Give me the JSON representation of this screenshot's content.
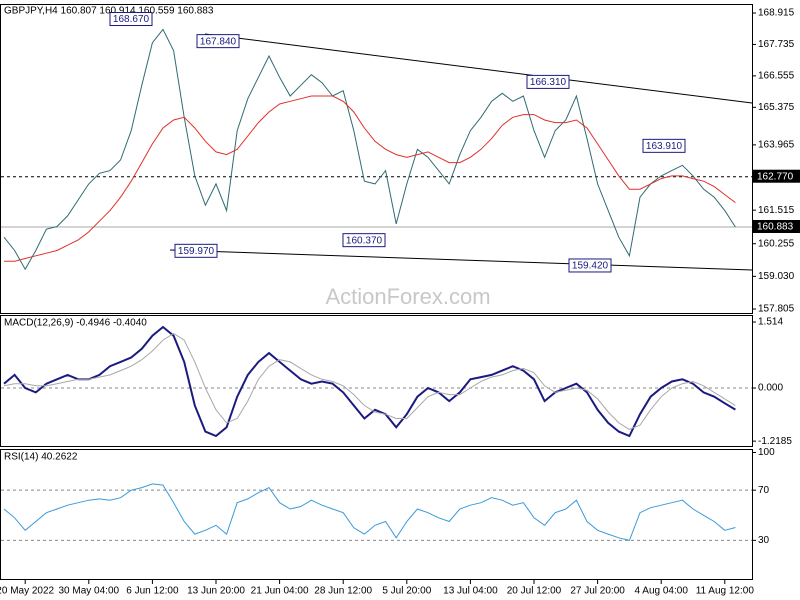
{
  "chart_data": [
    {
      "type": "line",
      "title": "GBPJPY,H4  160.807 160.914 160.559 160.883",
      "watermark": "ActionForex.com",
      "categories": [
        null,
        null,
        "20 May 2022",
        null,
        null,
        null,
        null,
        null,
        "30 May 04:00",
        null,
        null,
        null,
        null,
        null,
        "6 Jun 12:00",
        null,
        null,
        null,
        null,
        null,
        "13 Jun 20:00",
        null,
        null,
        null,
        null,
        null,
        "21 Jun 04:00",
        null,
        null,
        null,
        null,
        null,
        "28 Jun 12:00",
        null,
        null,
        null,
        null,
        null,
        "5 Jul 20:00",
        null,
        null,
        null,
        null,
        null,
        "13 Jul 04:00",
        null,
        null,
        null,
        null,
        null,
        "20 Jul 12:00",
        null,
        null,
        null,
        null,
        null,
        "27 Jul 20:00",
        null,
        null,
        null,
        null,
        null,
        "4 Aug 04:00",
        null,
        null,
        null,
        null,
        null,
        "11 Aug 12:00",
        null
      ],
      "series": [
        {
          "color": "#2e6b73",
          "values": [
            160.5,
            160.0,
            159.3,
            160.0,
            160.8,
            160.9,
            161.3,
            161.9,
            162.5,
            162.9,
            163.0,
            163.4,
            164.5,
            166.2,
            167.8,
            168.3,
            167.5,
            165.0,
            162.8,
            161.7,
            162.5,
            161.5,
            164.5,
            165.7,
            166.5,
            167.3,
            166.5,
            165.8,
            166.2,
            166.6,
            166.3,
            165.8,
            166.0,
            164.5,
            162.6,
            162.5,
            163.0,
            161.0,
            162.5,
            163.8,
            163.5,
            163.0,
            162.5,
            163.6,
            164.5,
            165.0,
            165.6,
            165.9,
            165.6,
            165.8,
            164.5,
            163.5,
            164.5,
            164.9,
            165.8,
            164.2,
            162.5,
            161.5,
            160.5,
            159.8,
            162.0,
            162.5,
            162.8,
            163.0,
            163.2,
            162.8,
            162.3,
            162.0,
            161.5,
            160.883
          ]
        },
        {
          "color": "#e0302a",
          "values": [
            159.6,
            159.6,
            159.7,
            159.8,
            159.9,
            160.0,
            160.2,
            160.4,
            160.7,
            161.1,
            161.5,
            162.0,
            162.6,
            163.3,
            164.0,
            164.6,
            164.9,
            165.0,
            164.6,
            164.1,
            163.7,
            163.6,
            163.8,
            164.3,
            164.8,
            165.2,
            165.5,
            165.6,
            165.7,
            165.8,
            165.8,
            165.8,
            165.6,
            165.2,
            164.6,
            164.1,
            163.8,
            163.6,
            163.5,
            163.6,
            163.7,
            163.5,
            163.3,
            163.3,
            163.5,
            163.8,
            164.2,
            164.7,
            165.0,
            165.1,
            165.1,
            164.9,
            164.8,
            164.8,
            164.9,
            164.6,
            164.0,
            163.4,
            162.8,
            162.3,
            162.3,
            162.5,
            162.7,
            162.8,
            162.8,
            162.7,
            162.6,
            162.4,
            162.1,
            161.8
          ]
        }
      ],
      "annotations": [
        {
          "value": 168.67,
          "label": "168.670"
        },
        {
          "value": 167.84,
          "label": "167.840"
        },
        {
          "value": 166.31,
          "label": "166.310"
        },
        {
          "value": 163.91,
          "label": "163.910"
        },
        {
          "value": 159.97,
          "label": "159.970"
        },
        {
          "value": 160.37,
          "label": "160.370"
        },
        {
          "value": 159.42,
          "label": "159.420"
        }
      ],
      "levels": [
        {
          "value": 162.77,
          "label": "162.770"
        }
      ],
      "last_price": 160.883,
      "ylim": [
        157.655,
        169.215
      ],
      "yticks": [
        168.915,
        167.735,
        166.555,
        165.375,
        163.965,
        161.515,
        160.255,
        {
          "value": 159.03,
          "label": "159.030"
        },
        157.805
      ]
    },
    {
      "type": "line",
      "title": "MACD(12,26,9) -0.4946 -0.4040",
      "series": [
        {
          "color": "#1a1a80",
          "values": [
            0.1,
            0.3,
            0.0,
            -0.1,
            0.1,
            0.2,
            0.3,
            0.2,
            0.2,
            0.3,
            0.5,
            0.6,
            0.7,
            0.9,
            1.2,
            1.4,
            1.2,
            0.6,
            -0.4,
            -1.0,
            -1.1,
            -0.9,
            -0.2,
            0.3,
            0.6,
            0.8,
            0.6,
            0.4,
            0.2,
            0.1,
            0.15,
            0.1,
            -0.1,
            -0.4,
            -0.7,
            -0.5,
            -0.6,
            -0.9,
            -0.6,
            -0.2,
            0.0,
            -0.1,
            -0.3,
            -0.1,
            0.2,
            0.25,
            0.3,
            0.4,
            0.5,
            0.4,
            0.2,
            -0.3,
            -0.1,
            0.0,
            0.1,
            -0.1,
            -0.5,
            -0.8,
            -1.0,
            -1.1,
            -0.6,
            -0.2,
            0.0,
            0.15,
            0.2,
            0.1,
            -0.1,
            -0.2,
            -0.35,
            -0.4946
          ]
        },
        {
          "color": "#a8a8a8",
          "values": [
            0.05,
            0.1,
            0.1,
            0.05,
            0.05,
            0.1,
            0.15,
            0.2,
            0.2,
            0.25,
            0.3,
            0.4,
            0.5,
            0.65,
            0.85,
            1.1,
            1.25,
            1.1,
            0.6,
            0.0,
            -0.5,
            -0.8,
            -0.7,
            -0.3,
            0.2,
            0.5,
            0.65,
            0.6,
            0.45,
            0.3,
            0.2,
            0.15,
            0.05,
            -0.15,
            -0.4,
            -0.55,
            -0.6,
            -0.7,
            -0.7,
            -0.45,
            -0.2,
            -0.1,
            -0.15,
            -0.15,
            0.0,
            0.15,
            0.25,
            0.3,
            0.4,
            0.45,
            0.35,
            0.05,
            -0.1,
            -0.05,
            0.0,
            -0.05,
            -0.25,
            -0.55,
            -0.8,
            -0.95,
            -0.85,
            -0.5,
            -0.2,
            0.0,
            0.1,
            0.15,
            0.05,
            -0.1,
            -0.25,
            -0.404
          ]
        }
      ],
      "levels": [
        {
          "value": 0,
          "label": "0.000"
        }
      ],
      "ylim": [
        -1.33,
        1.652
      ],
      "yticks": [
        1.514,
        {
          "value": 0,
          "label": "0.000"
        },
        -1.2185
      ]
    },
    {
      "type": "line",
      "title": "RSI(14) 40.2622",
      "series": [
        {
          "color": "#3a9ad9",
          "values": [
            55,
            48,
            38,
            45,
            52,
            55,
            58,
            60,
            62,
            63,
            62,
            64,
            70,
            72,
            75,
            74,
            60,
            45,
            35,
            38,
            42,
            35,
            60,
            63,
            68,
            72,
            60,
            55,
            57,
            62,
            58,
            55,
            52,
            40,
            35,
            42,
            45,
            32,
            45,
            55,
            52,
            48,
            45,
            55,
            58,
            60,
            64,
            62,
            58,
            60,
            48,
            42,
            52,
            55,
            62,
            45,
            38,
            35,
            32,
            30,
            52,
            56,
            58,
            60,
            62,
            55,
            50,
            45,
            38,
            40.2622
          ]
        }
      ],
      "levels": [
        70,
        30
      ],
      "ylim": [
        0,
        102
      ],
      "yticks": [
        100,
        70,
        30
      ]
    }
  ]
}
